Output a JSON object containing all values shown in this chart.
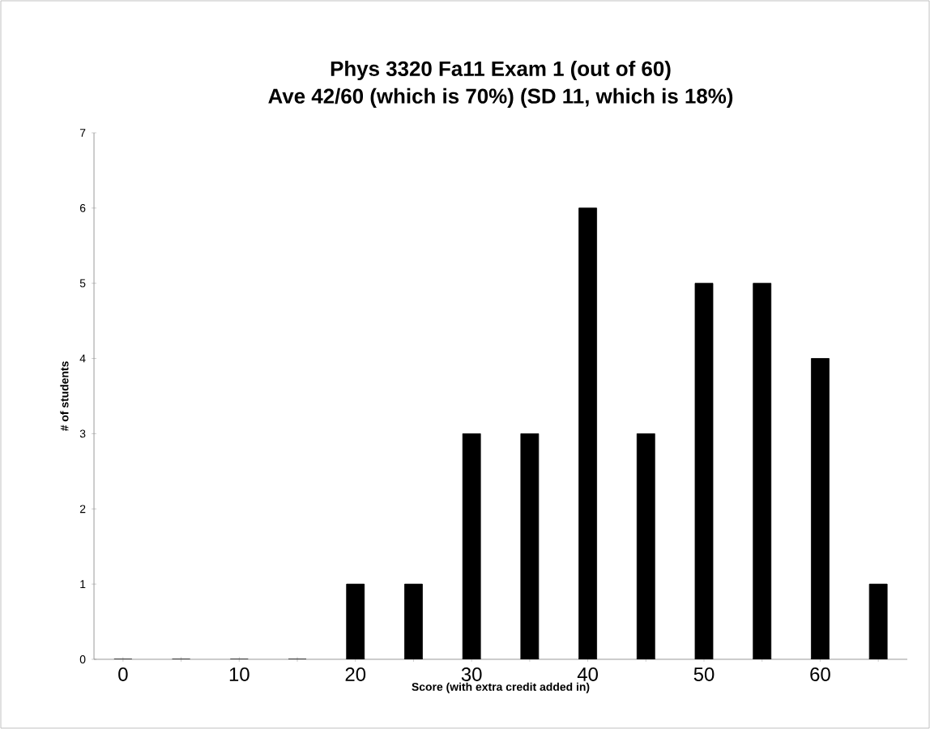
{
  "chart_data": {
    "type": "bar",
    "title": "Phys 3320 Fa11 Exam 1 (out of 60)",
    "subtitle": "Ave 42/60 (which is 70%)  (SD 11, which is 18%)",
    "xlabel": "Score (with extra credit added in)",
    "ylabel": "# of students",
    "categories": [
      "0",
      null,
      "10",
      null,
      "20",
      null,
      "30",
      null,
      "40",
      null,
      "50",
      null,
      "60",
      null
    ],
    "values": [
      0,
      0,
      0,
      0,
      1,
      1,
      3,
      3,
      6,
      3,
      5,
      5,
      4,
      1
    ],
    "color": "#000000",
    "ylim": [
      0,
      7
    ],
    "yticks": [
      0,
      1,
      2,
      3,
      4,
      5,
      6,
      7
    ],
    "grid": false
  }
}
